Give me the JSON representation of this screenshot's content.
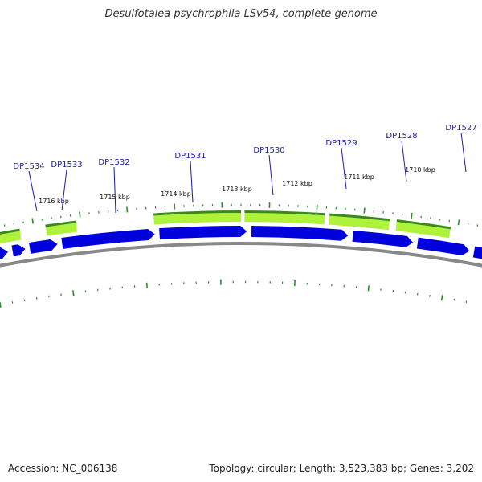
{
  "title": "Desulfotalea psychrophila LSv54, complete genome",
  "footer": {
    "accession": "Accession: NC_006138",
    "summary": "Topology: circular; Length: 3,523,383 bp; Genes: 3,202"
  },
  "genes": [
    {
      "name": "DP1527"
    },
    {
      "name": "DP1528"
    },
    {
      "name": "DP1529"
    },
    {
      "name": "DP1530"
    },
    {
      "name": "DP1531"
    },
    {
      "name": "DP1532"
    },
    {
      "name": "DP1533"
    },
    {
      "name": "DP1534"
    }
  ],
  "kbp_ticks": [
    "1710 kbp",
    "1711 kbp",
    "1712 kbp",
    "1713 kbp",
    "1714 kbp",
    "1715 kbp",
    "1716 kbp"
  ],
  "colors": {
    "blue_strand": "#0000dd",
    "green_light": "#aef23a",
    "green_dark": "#3a8a1a",
    "tick_green": "#2e8b2e",
    "backbone": "#888888",
    "label": "#1a1aa8"
  }
}
